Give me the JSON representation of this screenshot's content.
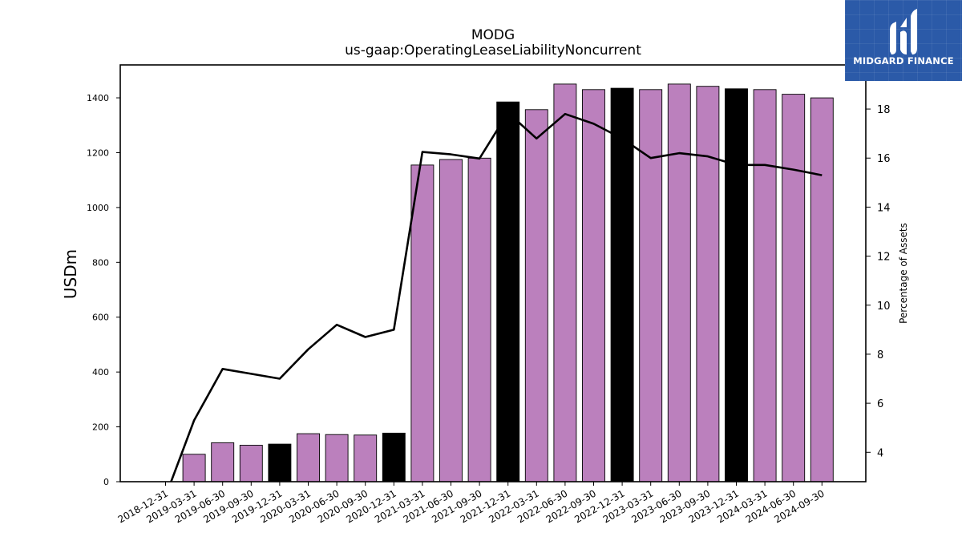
{
  "brand": {
    "name": "MIDGARD FINANCE",
    "bg_color": "#2b5aa8"
  },
  "colors": {
    "bar_regular": "#bb80bd",
    "bar_year_end": "#000000",
    "line": "#000000"
  },
  "chart_data": {
    "type": "bar",
    "title": "MODG",
    "subtitle": "us-gaap:OperatingLeaseLiabilityNoncurrent",
    "ylabel": "USDm",
    "y2label": "Percentage of Assets",
    "ylim": [
      0,
      1520
    ],
    "y2lim": [
      2.8,
      19.8
    ],
    "yticks": [
      0,
      200,
      400,
      600,
      800,
      1000,
      1200,
      1400
    ],
    "y2ticks": [
      4,
      6,
      8,
      10,
      12,
      14,
      16,
      18
    ],
    "categories": [
      "2018-12-31",
      "2019-03-31",
      "2019-06-30",
      "2019-09-30",
      "2019-12-31",
      "2020-03-31",
      "2020-06-30",
      "2020-09-30",
      "2020-12-31",
      "2021-03-31",
      "2021-06-30",
      "2021-09-30",
      "2021-12-31",
      "2022-03-31",
      "2022-06-30",
      "2022-09-30",
      "2022-12-31",
      "2023-03-31",
      "2023-06-30",
      "2023-09-30",
      "2023-12-31",
      "2024-03-31",
      "2024-06-30",
      "2024-09-30"
    ],
    "series": [
      {
        "kind": "bar",
        "values": [
          0,
          100,
          142,
          133,
          137,
          175,
          172,
          170,
          177,
          1155,
          1175,
          1180,
          1385,
          1357,
          1450,
          1430,
          1435,
          1430,
          1450,
          1442,
          1433,
          1430,
          1413,
          1400
        ],
        "year_end_flags": [
          true,
          false,
          false,
          false,
          true,
          false,
          false,
          false,
          true,
          false,
          false,
          false,
          true,
          false,
          false,
          false,
          true,
          false,
          false,
          false,
          true,
          false,
          false,
          false
        ]
      },
      {
        "kind": "line",
        "axis": "right",
        "values": [
          2.2,
          5.3,
          7.4,
          7.2,
          7.0,
          8.2,
          9.2,
          8.7,
          9.0,
          16.25,
          16.15,
          15.98,
          17.85,
          16.8,
          17.8,
          17.4,
          16.8,
          16.0,
          16.2,
          16.07,
          15.72,
          15.72,
          15.53,
          15.3
        ]
      }
    ]
  }
}
